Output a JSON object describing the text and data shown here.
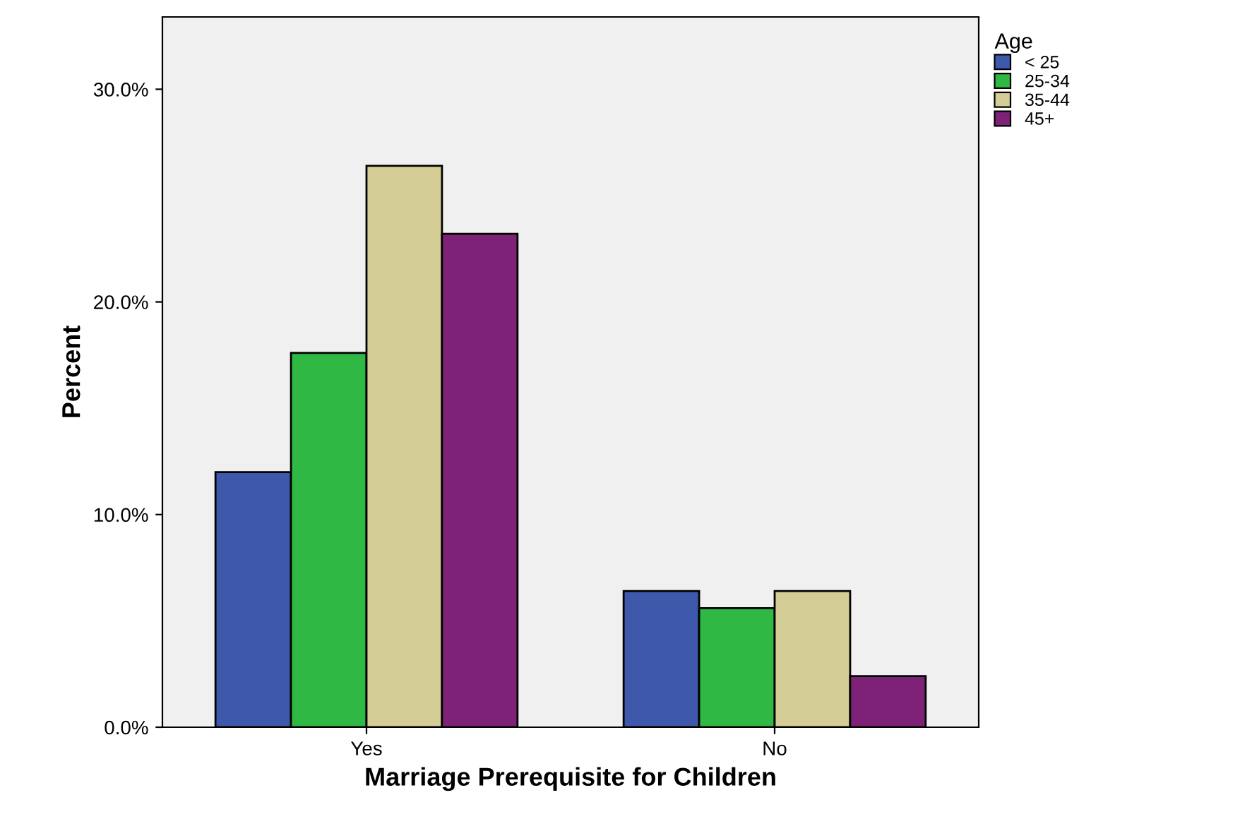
{
  "chart_data": {
    "type": "bar",
    "xlabel": "Marriage Prerequisite for Children",
    "ylabel": "Percent",
    "legend_title": "Age",
    "categories": [
      "Yes",
      "No"
    ],
    "series": [
      {
        "name": "< 25",
        "color": "#3e58ac",
        "values": [
          12.0,
          6.4
        ]
      },
      {
        "name": "25-34",
        "color": "#2fb844",
        "values": [
          17.6,
          5.6
        ]
      },
      {
        "name": "35-44",
        "color": "#d4cd95",
        "values": [
          26.4,
          6.4
        ]
      },
      {
        "name": "45+",
        "color": "#7d2277",
        "values": [
          23.2,
          2.4
        ]
      }
    ],
    "ylim": [
      0,
      33.4
    ],
    "yticks": [
      {
        "value": 0,
        "label": "0.0%"
      },
      {
        "value": 10,
        "label": "10.0%"
      },
      {
        "value": 20,
        "label": "20.0%"
      },
      {
        "value": 30,
        "label": "30.0%"
      }
    ],
    "grid": false,
    "legend": "top right"
  }
}
